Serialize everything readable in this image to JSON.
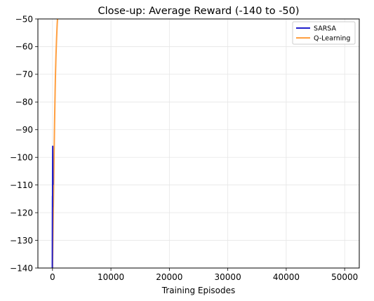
{
  "chart_data": {
    "type": "line",
    "title": "Close-up: Average Reward (-140 to -50)",
    "xlabel": "Training Episodes",
    "ylabel": "",
    "xlim": [
      -2500,
      52500
    ],
    "ylim": [
      -140,
      -50
    ],
    "xticks": [
      0,
      10000,
      20000,
      30000,
      40000,
      50000
    ],
    "xtick_labels": [
      "0",
      "10000",
      "20000",
      "30000",
      "40000",
      "50000"
    ],
    "yticks": [
      -50,
      -60,
      -70,
      -80,
      -90,
      -100,
      -110,
      -120,
      -130,
      -140
    ],
    "ytick_labels": [
      "−50",
      "−60",
      "−70",
      "−80",
      "−90",
      "−100",
      "−110",
      "−120",
      "−130",
      "−140"
    ],
    "grid": true,
    "legend_position": "top-right",
    "series": [
      {
        "name": "SARSA",
        "color": "#1f1fcc",
        "x": [
          -30,
          -20,
          -10,
          0,
          10,
          20,
          30,
          40,
          50,
          60,
          80
        ],
        "y": [
          -140,
          -130,
          -121,
          -114,
          -118,
          -106,
          -100,
          -96,
          -100,
          -104,
          -110
        ]
      },
      {
        "name": "Q-Learning",
        "color": "#ff9f40",
        "x": [
          0,
          50,
          100,
          150,
          200,
          250,
          300,
          350,
          400,
          450,
          500,
          600,
          700,
          800,
          1000
        ],
        "y": [
          -140,
          -133,
          -125,
          -117,
          -110,
          -102,
          -95,
          -88,
          -82,
          -76,
          -71,
          -63,
          -57,
          -52,
          -45
        ]
      }
    ]
  }
}
